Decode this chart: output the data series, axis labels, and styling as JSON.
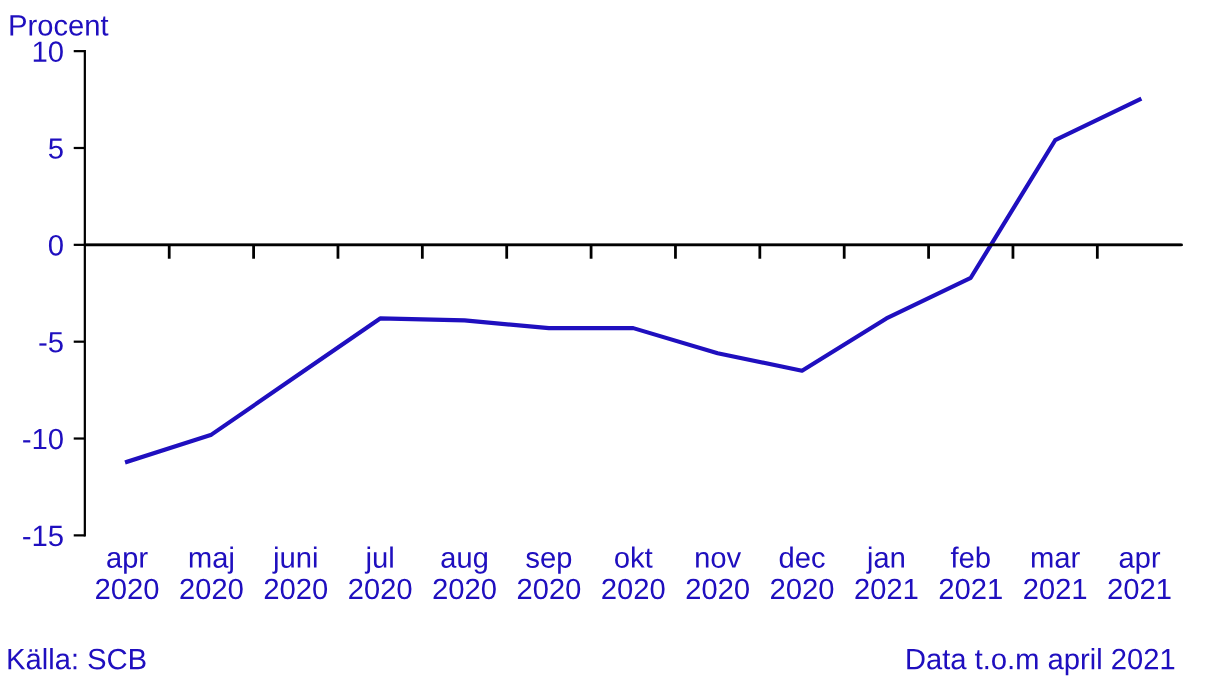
{
  "chart_data": {
    "type": "line",
    "ylabel": "Procent",
    "categories": [
      "apr\n2020",
      "maj\n2020",
      "juni\n2020",
      "jul\n2020",
      "aug\n2020",
      "sep\n2020",
      "okt\n2020",
      "nov\n2020",
      "dec\n2020",
      "jan\n2021",
      "feb\n2021",
      "mar\n2021",
      "apr\n2021"
    ],
    "series": [
      {
        "color": "#1f0fbf",
        "values": [
          -11.2,
          -9.8,
          -6.8,
          -3.8,
          -3.9,
          -4.3,
          -4.3,
          -5.6,
          -6.5,
          -3.8,
          -1.7,
          5.4,
          7.5
        ]
      }
    ],
    "ref_lines": [
      {
        "axis": "y",
        "value": 0,
        "color": "#000000"
      }
    ],
    "ylim": [
      -15,
      10
    ],
    "yticks": [
      -15,
      -10,
      -5,
      0,
      5,
      10
    ],
    "grid": false,
    "legend": false,
    "annotations": [
      "Källa: SCB",
      "Data t.o.m april 2021"
    ]
  }
}
